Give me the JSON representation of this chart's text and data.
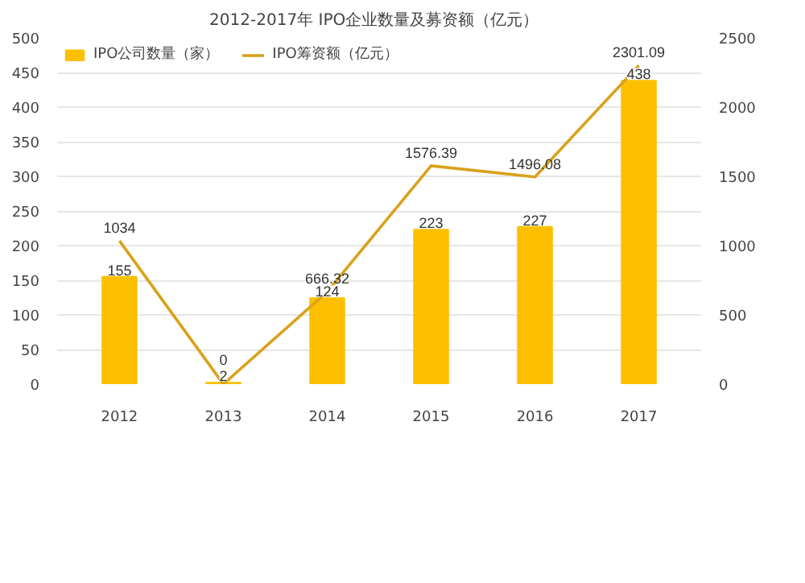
{
  "chart_data": {
    "type": "bar",
    "title": "2012-2017年   IPO企业数量及募资额（亿元）",
    "categories": [
      "2012",
      "2013",
      "2014",
      "2015",
      "2016",
      "2017"
    ],
    "series": [
      {
        "name": "IPO公司数量（家）",
        "color": "#fcc000",
        "values": [
          155,
          2,
          124,
          223,
          227,
          438
        ]
      },
      {
        "name": "IPO筹资额（亿元）",
        "color": "#d9a21b",
        "type": "line",
        "axis": "y2",
        "values": [
          1034,
          0,
          666.32,
          1576.39,
          1496.08,
          2301.09
        ]
      }
    ],
    "ylim": [
      0,
      500
    ],
    "yticks": [
      0,
      50,
      100,
      150,
      200,
      250,
      300,
      350,
      400,
      450,
      500
    ],
    "y2lim": [
      0,
      2500
    ],
    "y2ticks": [
      0,
      500,
      1000,
      1500,
      2000,
      2500
    ],
    "data_labels": true,
    "grid": "y",
    "legend": "top left"
  }
}
